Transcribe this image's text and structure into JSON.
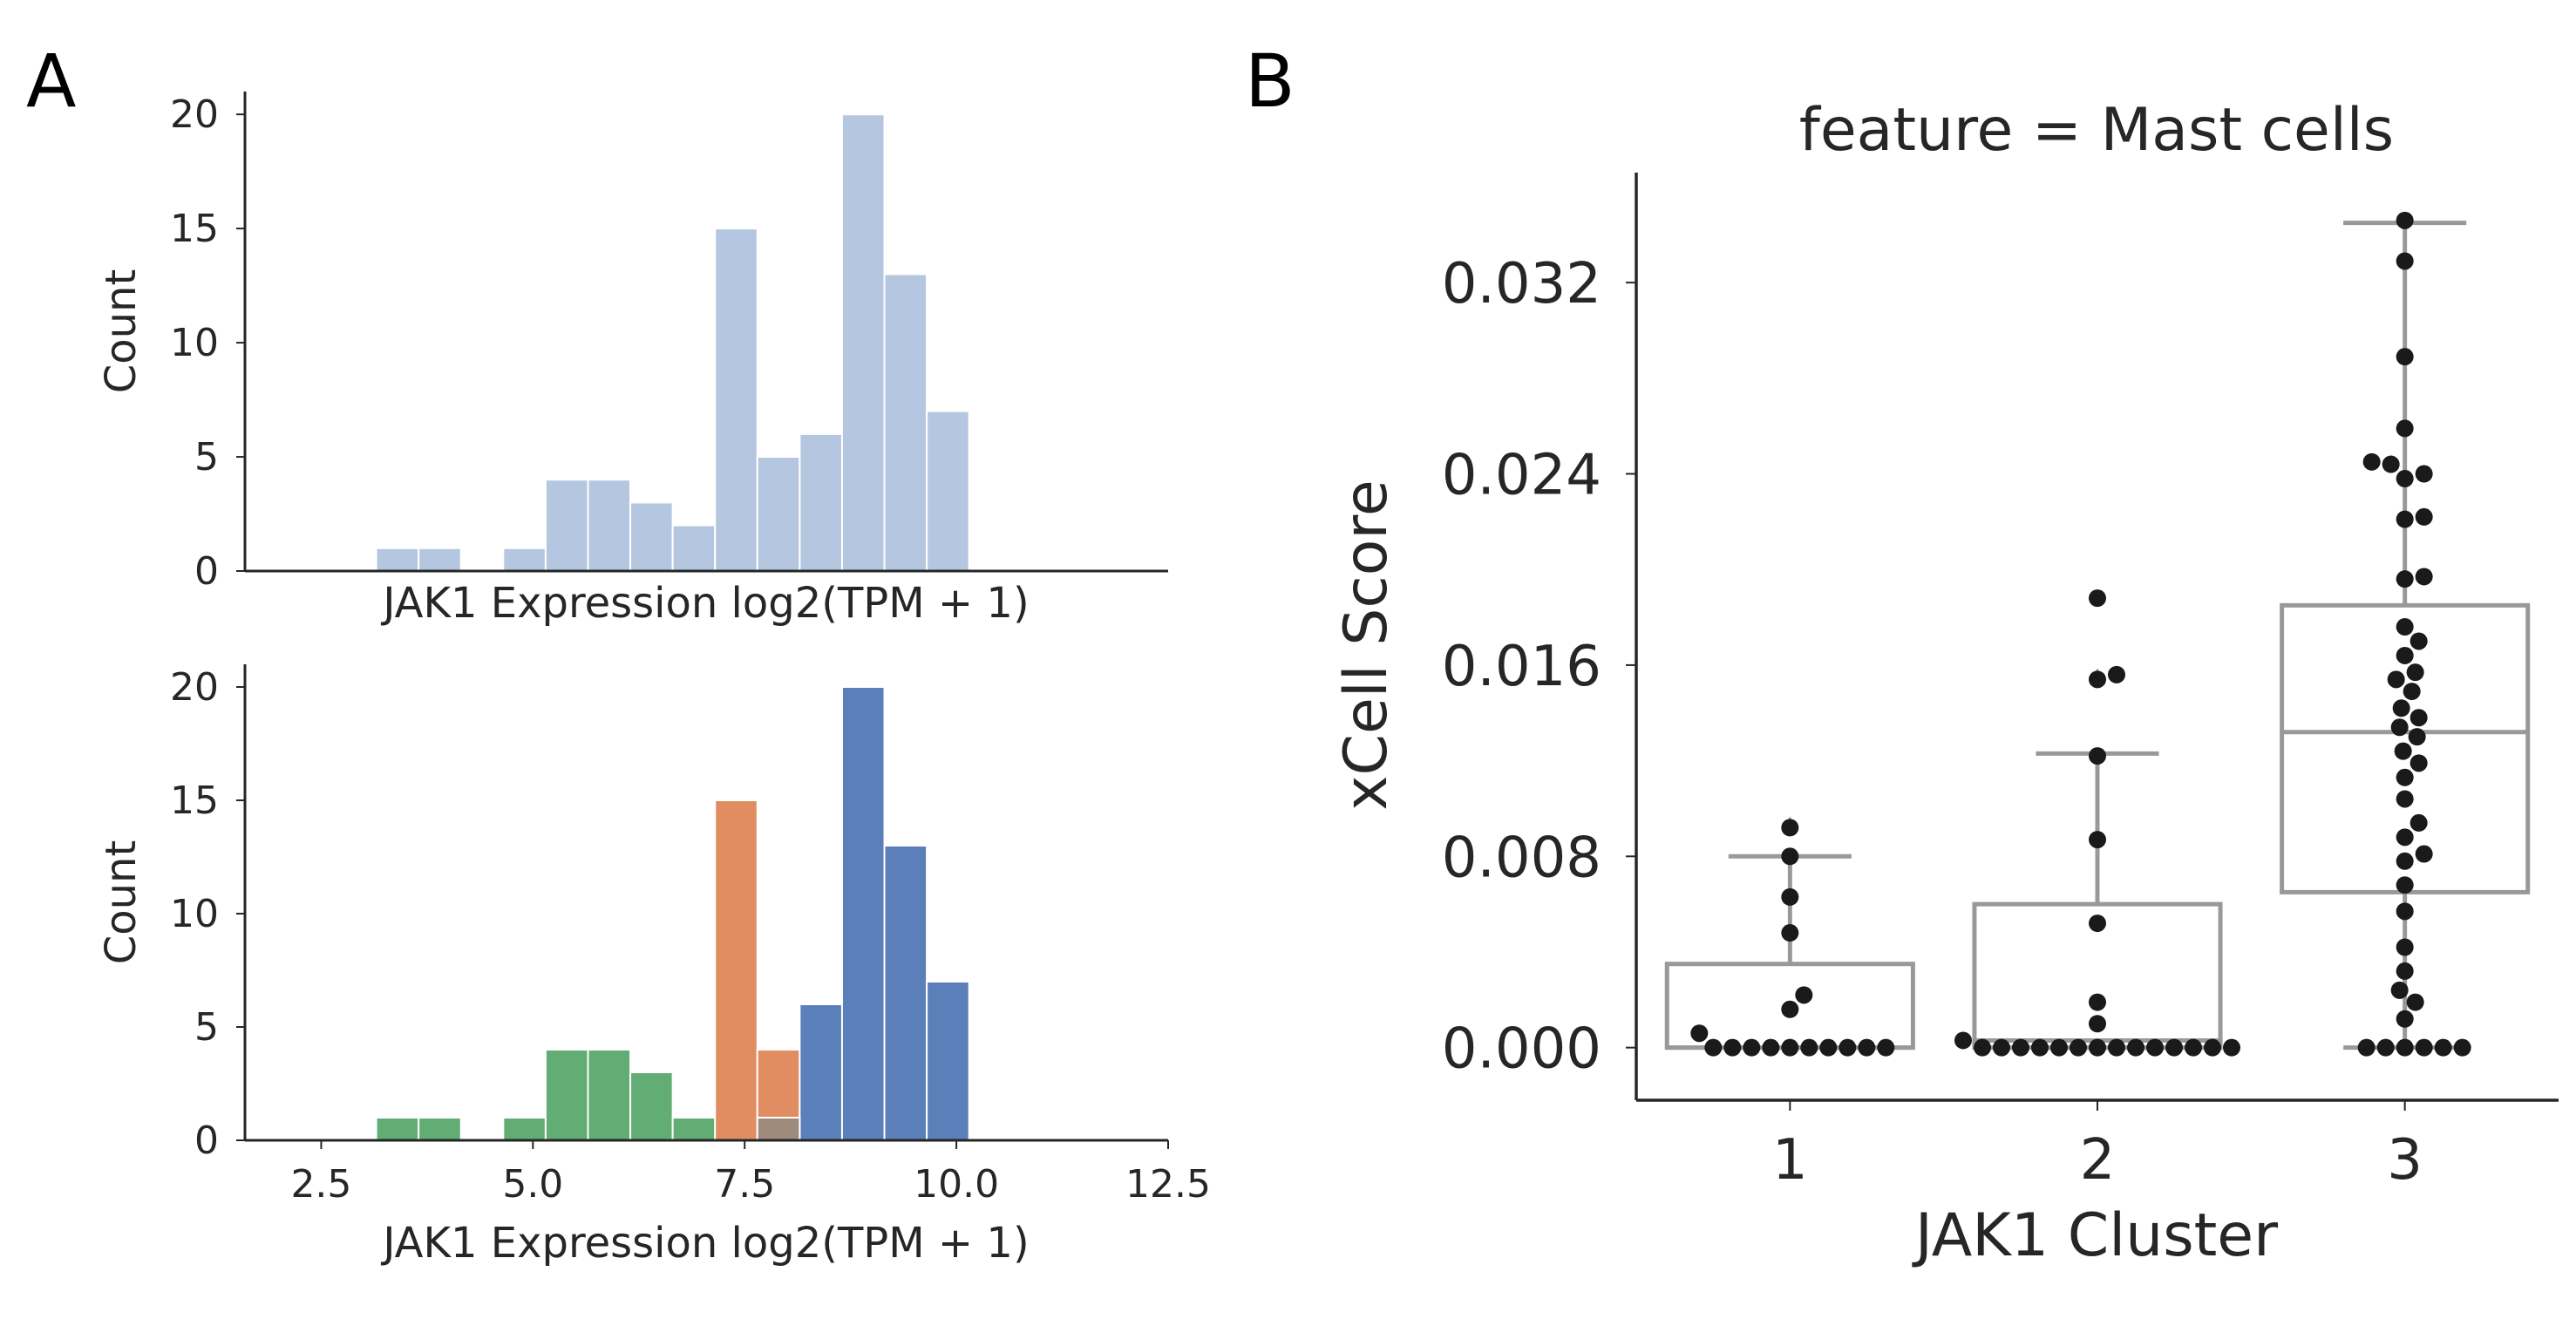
{
  "panels": {
    "a": {
      "letter": "A"
    },
    "b": {
      "letter": "B"
    }
  },
  "chart_data": [
    {
      "type": "bar",
      "subtype": "histogram",
      "xlabel": "JAK1 Expression log2(TPM + 1)",
      "ylabel": "Count",
      "xlim": [
        1.6,
        12.5
      ],
      "ylim": [
        0,
        21
      ],
      "yticks": [
        0,
        5,
        10,
        15,
        20
      ],
      "xticks_shown": false,
      "grid": false,
      "color": "#b5c7e0",
      "bins": [
        {
          "x0": 3.15,
          "x1": 3.65,
          "count": 1
        },
        {
          "x0": 3.65,
          "x1": 4.15,
          "count": 1
        },
        {
          "x0": 4.65,
          "x1": 5.15,
          "count": 1
        },
        {
          "x0": 5.15,
          "x1": 5.65,
          "count": 4
        },
        {
          "x0": 5.65,
          "x1": 6.15,
          "count": 4
        },
        {
          "x0": 6.15,
          "x1": 6.65,
          "count": 3
        },
        {
          "x0": 6.65,
          "x1": 7.15,
          "count": 2
        },
        {
          "x0": 7.15,
          "x1": 7.65,
          "count": 15
        },
        {
          "x0": 7.65,
          "x1": 8.15,
          "count": 5
        },
        {
          "x0": 8.15,
          "x1": 8.65,
          "count": 6
        },
        {
          "x0": 8.65,
          "x1": 9.15,
          "count": 20
        },
        {
          "x0": 9.15,
          "x1": 9.65,
          "count": 13
        },
        {
          "x0": 9.65,
          "x1": 10.15,
          "count": 7
        }
      ]
    },
    {
      "type": "bar",
      "subtype": "stacked histogram by cluster",
      "xlabel": "JAK1 Expression log2(TPM + 1)",
      "ylabel": "Count",
      "xlim": [
        1.6,
        12.5
      ],
      "ylim": [
        0,
        21
      ],
      "xticks": [
        "2.5",
        "5.0",
        "7.5",
        "10.0",
        "12.5"
      ],
      "yticks": [
        0,
        5,
        10,
        15,
        20
      ],
      "grid": false,
      "series": [
        {
          "color": "#62ad74",
          "bins": [
            {
              "x0": 3.15,
              "x1": 3.65,
              "count": 1
            },
            {
              "x0": 3.65,
              "x1": 4.15,
              "count": 1
            },
            {
              "x0": 4.65,
              "x1": 5.15,
              "count": 1
            },
            {
              "x0": 5.15,
              "x1": 5.65,
              "count": 4
            },
            {
              "x0": 5.65,
              "x1": 6.15,
              "count": 4
            },
            {
              "x0": 6.15,
              "x1": 6.65,
              "count": 3
            },
            {
              "x0": 6.65,
              "x1": 7.15,
              "count": 1
            }
          ]
        },
        {
          "color": "#e08e61",
          "bins": [
            {
              "x0": 7.15,
              "x1": 7.65,
              "count": 15
            },
            {
              "x0": 7.65,
              "x1": 8.15,
              "count": 4
            }
          ]
        },
        {
          "color": "#5b7fb8",
          "bins": [
            {
              "x0": 8.15,
              "x1": 8.65,
              "count": 6
            },
            {
              "x0": 8.65,
              "x1": 9.15,
              "count": 20
            },
            {
              "x0": 9.15,
              "x1": 9.65,
              "count": 13
            },
            {
              "x0": 9.65,
              "x1": 10.15,
              "count": 7
            }
          ]
        }
      ],
      "overlap_color": "#9f8b7b",
      "overlap_bin": {
        "x0": 7.65,
        "x1": 8.15,
        "count": 1
      }
    },
    {
      "type": "box",
      "subtype": "boxplot with swarm points",
      "title": "feature = Mast cells",
      "xlabel": "JAK1 Cluster",
      "ylabel": "xCell Score",
      "categories": [
        "1",
        "2",
        "3"
      ],
      "yticks": [
        "0.000",
        "0.008",
        "0.016",
        "0.024",
        "0.032"
      ],
      "ylim": [
        -0.0022,
        0.0366
      ],
      "grid": false,
      "box_color": "#999999",
      "point_color": "#1a1a1a",
      "boxes": [
        {
          "q1": 0.0,
          "median": 0.0,
          "q3": 0.0035,
          "whisker_low": 0.0,
          "whisker_high": 0.008,
          "outliers": [
            0.0093
          ]
        },
        {
          "q1": 0.0,
          "median": 0.0003,
          "q3": 0.006,
          "whisker_low": 0.0,
          "whisker_high": 0.0123,
          "outliers": [
            0.0155,
            0.0188
          ]
        },
        {
          "q1": 0.0065,
          "median": 0.0132,
          "q3": 0.0185,
          "whisker_low": 0.0,
          "whisker_high": 0.0345,
          "outliers": []
        }
      ],
      "points": [
        {
          "category": "1",
          "values": [
            0.0,
            0.0,
            0.0,
            0.0,
            0.0,
            0.0,
            0.0,
            0.0,
            0.0,
            0.0,
            0.0006,
            0.0016,
            0.0022,
            0.0048,
            0.0063,
            0.008,
            0.0092
          ]
        },
        {
          "category": "2",
          "values": [
            0.0,
            0.0,
            0.0,
            0.0,
            0.0,
            0.0,
            0.0,
            0.0,
            0.0,
            0.0,
            0.0,
            0.0,
            0.0,
            0.0,
            0.0003,
            0.001,
            0.0019,
            0.0052,
            0.0087,
            0.0122,
            0.0154,
            0.0156,
            0.0188
          ]
        },
        {
          "category": "3",
          "values": [
            0.0,
            0.0,
            0.0,
            0.0,
            0.0,
            0.0,
            0.0012,
            0.0019,
            0.0024,
            0.0032,
            0.0042,
            0.0057,
            0.0068,
            0.0078,
            0.0081,
            0.0088,
            0.0094,
            0.0104,
            0.0113,
            0.0119,
            0.0124,
            0.013,
            0.0134,
            0.0138,
            0.0142,
            0.0149,
            0.0154,
            0.0157,
            0.0164,
            0.017,
            0.0176,
            0.0196,
            0.0197,
            0.0221,
            0.0222,
            0.0238,
            0.024,
            0.0244,
            0.0245,
            0.0259,
            0.0289,
            0.0329,
            0.0346
          ]
        }
      ]
    }
  ]
}
